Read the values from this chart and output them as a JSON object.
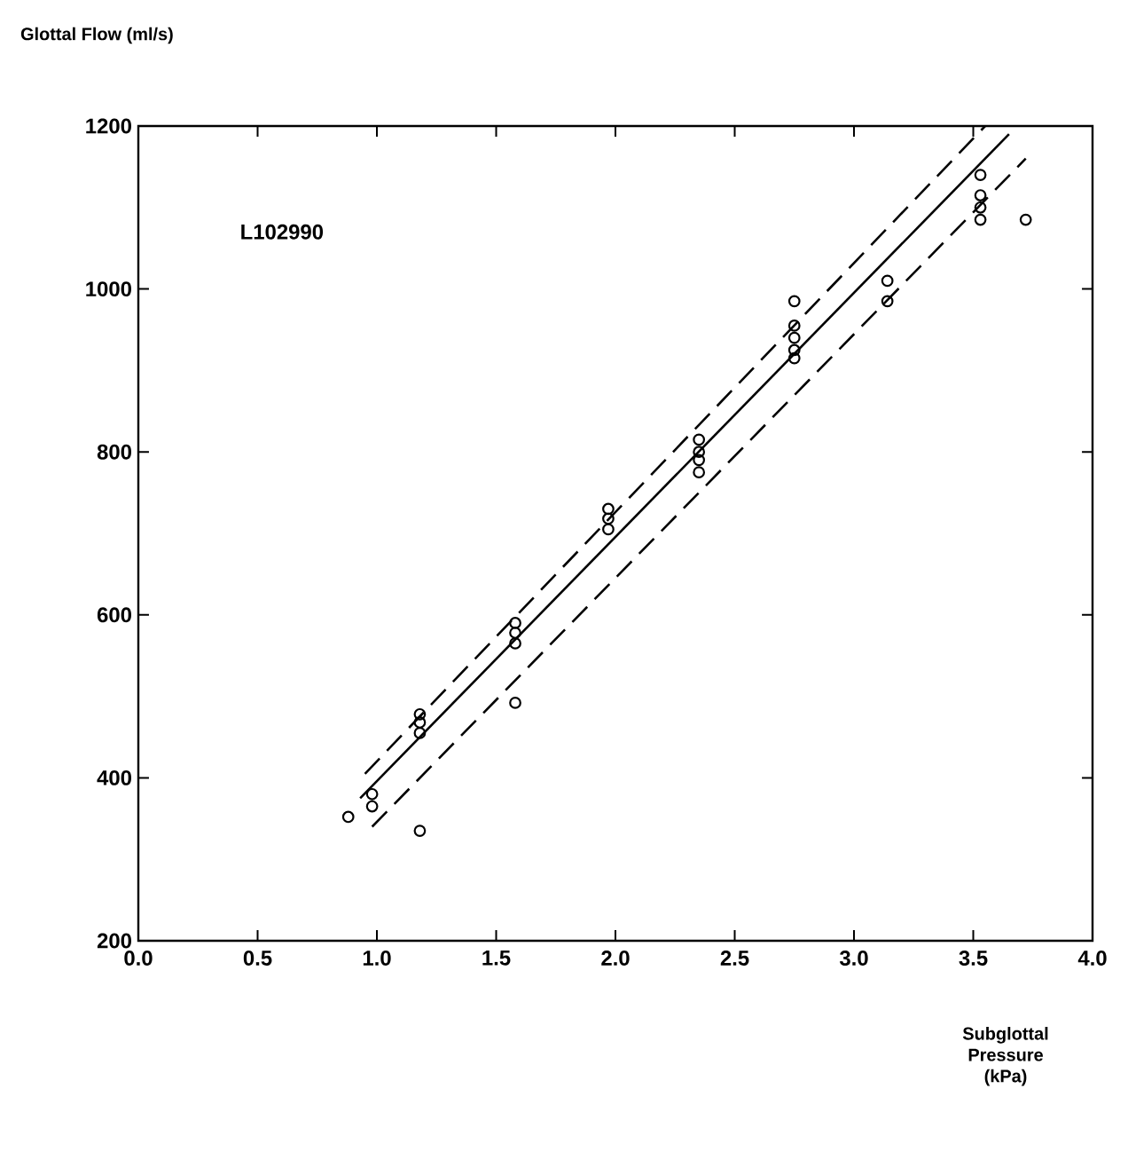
{
  "chart_data": {
    "type": "scatter",
    "xlabel": "Subglottal Pressure (kPa)",
    "ylabel": "Glottal Flow (ml/s)",
    "annotations": [
      "L102990"
    ],
    "xlim": [
      0,
      4
    ],
    "ylim": [
      200,
      1200
    ],
    "xticks": [
      {
        "value": 0,
        "label": "0.0"
      },
      {
        "value": 0.5,
        "label": "0.5"
      },
      {
        "value": 1,
        "label": "1.0"
      },
      {
        "value": 1.5,
        "label": "1.5"
      },
      {
        "value": 2,
        "label": "2.0"
      },
      {
        "value": 2.5,
        "label": "2.5"
      },
      {
        "value": 3,
        "label": "3.0"
      },
      {
        "value": 3.5,
        "label": "3.5"
      },
      {
        "value": 4,
        "label": "4.0"
      }
    ],
    "yticks": [
      200,
      400,
      600,
      800,
      1000,
      1200
    ],
    "grid": false,
    "series": [
      {
        "type": "scatter",
        "color": "#000000",
        "marker": "circle",
        "x": [
          0.88,
          0.98,
          0.98,
          1.18,
          1.18,
          1.18,
          1.18,
          1.58,
          1.58,
          1.58,
          1.58,
          1.97,
          1.97,
          1.97,
          2.35,
          2.35,
          2.35,
          2.35,
          2.75,
          2.75,
          2.75,
          2.75,
          2.75,
          3.14,
          3.14,
          3.53,
          3.53,
          3.53,
          3.53,
          3.72
        ],
        "values": [
          352,
          380,
          365,
          478,
          468,
          455,
          335,
          590,
          578,
          565,
          492,
          730,
          718,
          705,
          815,
          800,
          790,
          775,
          985,
          955,
          940,
          925,
          915,
          1010,
          985,
          1140,
          1115,
          1100,
          1085,
          1085
        ]
      },
      {
        "type": "line",
        "color": "#000000",
        "line_style": "solid",
        "x": [
          0.93,
          3.65
        ],
        "values": [
          375,
          1190
        ]
      },
      {
        "type": "line",
        "color": "#000000",
        "line_style": "dashed",
        "x": [
          0.95,
          3.55
        ],
        "values": [
          405,
          1200
        ]
      },
      {
        "type": "line",
        "color": "#000000",
        "line_style": "dashed",
        "x": [
          0.98,
          3.72
        ],
        "values": [
          340,
          1160
        ]
      }
    ]
  }
}
